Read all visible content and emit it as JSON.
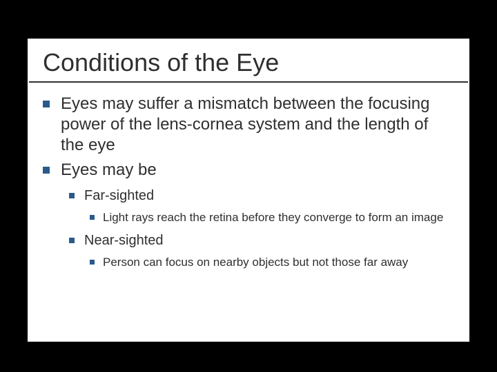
{
  "slide": {
    "title": "Conditions of the Eye",
    "title_fontsize": 36,
    "title_color": "#2f2f2f",
    "underline_color": "#2f2f2f",
    "background_color": "#ffffff",
    "outer_background": "#000000",
    "bullet_color": "#2a5a8a",
    "lvl1_fontsize": 24,
    "lvl2_fontsize": 20,
    "lvl3_fontsize": 17,
    "items": [
      {
        "text": "Eyes may suffer a mismatch between the focusing power of the lens-cornea system and the length of the eye"
      },
      {
        "text": "Eyes may be",
        "children": [
          {
            "text": "Far-sighted",
            "children": [
              {
                "text": "Light rays reach the retina before they converge to form an image"
              }
            ]
          },
          {
            "text": "Near-sighted",
            "children": [
              {
                "text": "Person can focus on nearby objects but not those far away"
              }
            ]
          }
        ]
      }
    ]
  }
}
